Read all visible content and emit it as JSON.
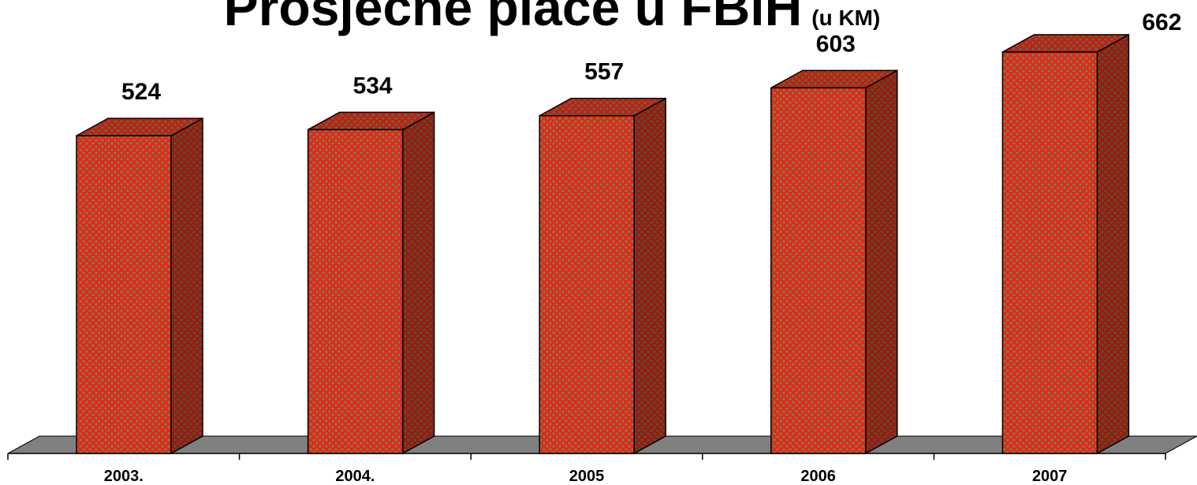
{
  "chart_data": {
    "type": "bar3d",
    "title": "Prosječne plaće u FBiH",
    "title_unit": "(u KM)",
    "categories": [
      "2003.",
      "2004.",
      "2005",
      "2006",
      "2007"
    ],
    "values": [
      524,
      534,
      557,
      603,
      662
    ],
    "color": "#e8251b"
  }
}
